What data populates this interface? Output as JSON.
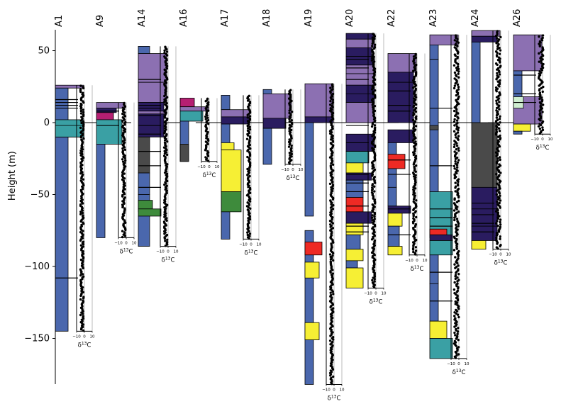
{
  "colors": {
    "blue": "#4a67ad",
    "purple": "#8c70b2",
    "navy": "#2a1c60",
    "teal": "#3aa0a4",
    "magenta": "#b51f72",
    "red": "#ee2a24",
    "yellow": "#f6ef34",
    "green": "#3e8b3c",
    "darkgray": "#4a4a4a",
    "lightgreen": "#cfeed0"
  },
  "chart_data": {
    "type": "stratigraphic-column-panel",
    "ylabel": "Height (m)",
    "ylim": [
      -182,
      64
    ],
    "yticks": [
      50,
      0,
      -50,
      -100,
      -150
    ],
    "zero_line": true,
    "sections": [
      {
        "name": "A1",
        "top": 26,
        "base": -145,
        "d13c_range": [
          -10,
          10
        ],
        "d13c_ticks": [
          "−10",
          "0",
          "10"
        ],
        "d13c_label": "δ13C",
        "d13c_top": 26,
        "d13c_base": -145
      },
      {
        "name": "A9",
        "top": 14,
        "base": -80,
        "d13c_range": [
          -10,
          10
        ],
        "d13c_ticks": [
          "−10",
          "0",
          "10"
        ],
        "d13c_label": "δ13C",
        "d13c_top": 14,
        "d13c_base": -80
      },
      {
        "name": "A14",
        "top": 53,
        "base": -86,
        "d13c_range": [
          -10,
          10
        ],
        "d13c_ticks": [
          "−10",
          "0",
          "10"
        ],
        "d13c_label": "δ13C",
        "d13c_top": 53,
        "d13c_base": -86
      },
      {
        "name": "A16",
        "top": 17,
        "base": -27,
        "d13c_range": [
          -10,
          10
        ],
        "d13c_ticks": [
          "−10",
          "0",
          "10"
        ],
        "d13c_label": "δ13C",
        "d13c_top": 17,
        "d13c_base": -27
      },
      {
        "name": "A17",
        "top": 19,
        "base": -81,
        "d13c_range": [
          -10,
          10
        ],
        "d13c_ticks": [
          "−10",
          "0",
          "10"
        ],
        "d13c_label": "δ13C",
        "d13c_top": 19,
        "d13c_base": -81
      },
      {
        "name": "A18",
        "top": 23,
        "base": -29,
        "d13c_range": [
          -10,
          10
        ],
        "d13c_ticks": [
          "−10",
          "0",
          "10"
        ],
        "d13c_label": "δ13C",
        "d13c_top": 23,
        "d13c_base": -29
      },
      {
        "name": "A19",
        "top": 27,
        "base": -182,
        "d13c_range": [
          -10,
          10
        ],
        "d13c_ticks": [
          "−10",
          "0",
          "10"
        ],
        "d13c_label": "δ13C",
        "d13c_top": 27,
        "d13c_base": -182
      },
      {
        "name": "A20",
        "top": 62,
        "base": -115,
        "d13c_range": [
          -10,
          10
        ],
        "d13c_ticks": [
          "−10",
          "0",
          "10"
        ],
        "d13c_label": "δ13C",
        "d13c_top": 62,
        "d13c_base": -115
      },
      {
        "name": "A22",
        "top": 48,
        "base": -92,
        "d13c_range": [
          -10,
          10
        ],
        "d13c_ticks": [
          "−10",
          "0",
          "10"
        ],
        "d13c_label": "δ13C",
        "d13c_top": 48,
        "d13c_base": -92
      },
      {
        "name": "A23",
        "top": 61,
        "base": -164,
        "d13c_range": [
          -10,
          10
        ],
        "d13c_ticks": [
          "−10",
          "0",
          "10"
        ],
        "d13c_label": "δ13C",
        "d13c_top": 61,
        "d13c_base": -164
      },
      {
        "name": "A24",
        "top": 64,
        "base": -88,
        "d13c_range": [
          -10,
          10
        ],
        "d13c_ticks": [
          "−10",
          "0",
          "10"
        ],
        "d13c_label": "δ13C",
        "d13c_top": 64,
        "d13c_base": -88
      },
      {
        "name": "A26",
        "top": 61,
        "base": -8,
        "d13c_range": [
          -10,
          10
        ],
        "d13c_ticks": [
          "−10",
          "0",
          "10"
        ],
        "d13c_label": "δ13C",
        "d13c_top": 61,
        "d13c_base": -8
      }
    ]
  }
}
